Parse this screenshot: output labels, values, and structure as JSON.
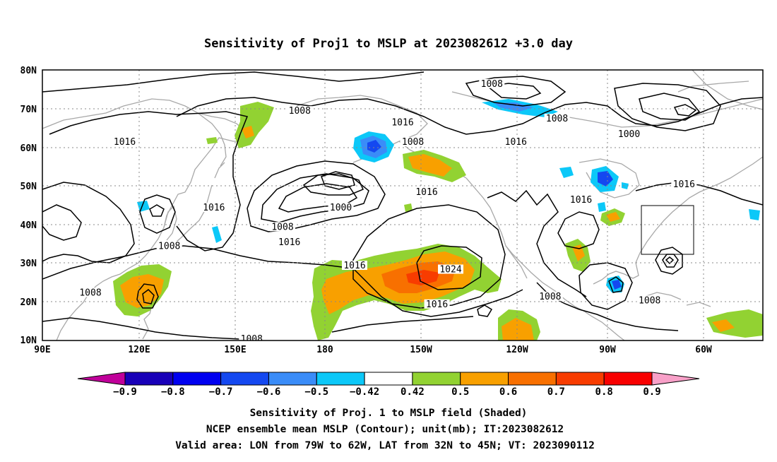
{
  "title": "Sensitivity of Proj1 to MSLP at 2023082612 +3.0 day",
  "map": {
    "lat_ticks": [
      "80N",
      "70N",
      "60N",
      "50N",
      "40N",
      "30N",
      "20N",
      "10N"
    ],
    "lon_ticks": [
      "90E",
      "120E",
      "150E",
      "180",
      "150W",
      "120W",
      "90W",
      "60W"
    ],
    "contour_labels": [
      {
        "text": "1008",
        "lon": 165,
        "lat": 69
      },
      {
        "text": "1008",
        "lon": 221,
        "lat": 76
      },
      {
        "text": "1008",
        "lon": 240,
        "lat": 67
      },
      {
        "text": "1016",
        "lon": 195,
        "lat": 66
      },
      {
        "text": "1016",
        "lon": 228,
        "lat": 61
      },
      {
        "text": "1016",
        "lon": 114,
        "lat": 61
      },
      {
        "text": "1008",
        "lon": 198,
        "lat": 61
      },
      {
        "text": "1000",
        "lon": 261,
        "lat": 63
      },
      {
        "text": "1016",
        "lon": 202,
        "lat": 48
      },
      {
        "text": "1016",
        "lon": 247,
        "lat": 46
      },
      {
        "text": "1016",
        "lon": 277,
        "lat": 50
      },
      {
        "text": "1016",
        "lon": 140,
        "lat": 44
      },
      {
        "text": "1000",
        "lon": 177,
        "lat": 44
      },
      {
        "text": "1008",
        "lon": 160,
        "lat": 39
      },
      {
        "text": "1016",
        "lon": 162,
        "lat": 35
      },
      {
        "text": "1008",
        "lon": 127,
        "lat": 34
      },
      {
        "text": "1016",
        "lon": 181,
        "lat": 29
      },
      {
        "text": "1024",
        "lon": 209,
        "lat": 28
      },
      {
        "text": "1008",
        "lon": 104,
        "lat": 22
      },
      {
        "text": "1016",
        "lon": 205,
        "lat": 19
      },
      {
        "text": "1008",
        "lon": 238,
        "lat": 21
      },
      {
        "text": "1008",
        "lon": 267,
        "lat": 20
      },
      {
        "text": "1008",
        "lon": 151,
        "lat": 10
      }
    ],
    "colors": {
      "ocean": "#ffffff",
      "coast": "#a8a8a8",
      "contour": "#000000",
      "grid": "#888888"
    }
  },
  "colorbar": {
    "labels": [
      "-0.9",
      "-0.8",
      "-0.7",
      "-0.6",
      "-0.5",
      "-0.42",
      "0.42",
      "0.5",
      "0.6",
      "0.7",
      "0.8",
      "0.9"
    ],
    "colors": [
      "#c0009a",
      "#1800b8",
      "#0000f0",
      "#1448f0",
      "#3a8cf8",
      "#0cc8f8",
      "#ffffff",
      "#92d232",
      "#f8a000",
      "#f87000",
      "#f83c00",
      "#f80000",
      "#f8a0c8"
    ]
  },
  "captions": [
    "Sensitivity of Proj. 1 to MSLP field (Shaded)",
    "NCEP ensemble mean MSLP (Contour); unit(mb); IT:2023082612",
    "Valid area: LON from 79W to 62W, LAT from 32N to 45N; VT: 2023090112"
  ]
}
